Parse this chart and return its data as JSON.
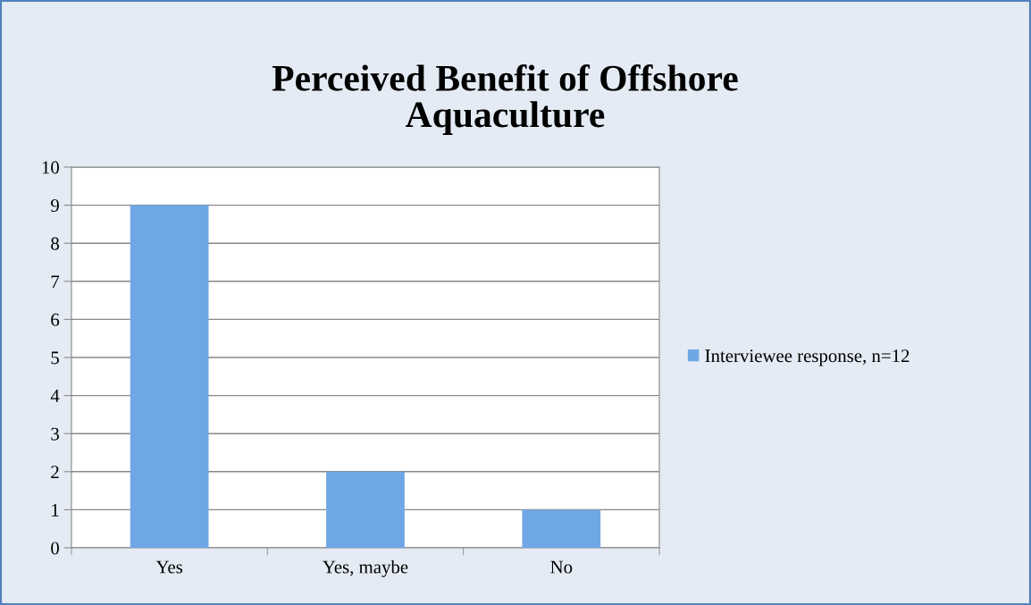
{
  "chart_data": {
    "type": "bar",
    "title": "Perceived Benefit of Offshore\nAquaculture",
    "categories": [
      "Yes",
      "Yes, maybe",
      "No"
    ],
    "series": [
      {
        "name": "Interviewee response, n=12",
        "color": "#6fa6e6",
        "values": [
          9,
          2,
          1
        ]
      }
    ],
    "ylim": [
      0,
      10
    ],
    "yticks": [
      0,
      1,
      2,
      3,
      4,
      5,
      6,
      7,
      8,
      9,
      10
    ],
    "grid": "y",
    "legend": "right"
  }
}
